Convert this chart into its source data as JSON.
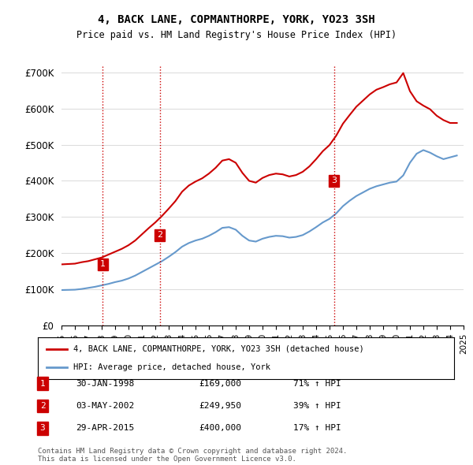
{
  "title": "4, BACK LANE, COPMANTHORPE, YORK, YO23 3SH",
  "subtitle": "Price paid vs. HM Land Registry's House Price Index (HPI)",
  "ylabel": "",
  "ylim": [
    0,
    720000
  ],
  "yticks": [
    0,
    100000,
    200000,
    300000,
    400000,
    500000,
    600000,
    700000
  ],
  "ytick_labels": [
    "£0",
    "£100K",
    "£200K",
    "£300K",
    "£400K",
    "£500K",
    "£600K",
    "£700K"
  ],
  "sale_dates": [
    1998.08,
    2002.34,
    2015.33
  ],
  "sale_prices": [
    169000,
    249950,
    400000
  ],
  "transaction_labels": [
    "1",
    "2",
    "3"
  ],
  "transaction_info": [
    [
      "1",
      "30-JAN-1998",
      "£169,000",
      "71% ↑ HPI"
    ],
    [
      "2",
      "03-MAY-2002",
      "£249,950",
      "39% ↑ HPI"
    ],
    [
      "3",
      "29-APR-2015",
      "£400,000",
      "17% ↑ HPI"
    ]
  ],
  "legend_entries": [
    "4, BACK LANE, COPMANTHORPE, YORK, YO23 3SH (detached house)",
    "HPI: Average price, detached house, York"
  ],
  "hpi_line_color": "#6699cc",
  "sale_line_color": "#cc0000",
  "vline_color": "#cc0000",
  "background_color": "#ffffff",
  "grid_color": "#dddddd",
  "footnote": "Contains HM Land Registry data © Crown copyright and database right 2024.\nThis data is licensed under the Open Government Licence v3.0.",
  "hpi_x": [
    1995,
    1995.5,
    1996,
    1996.5,
    1997,
    1997.5,
    1998,
    1998.5,
    1999,
    1999.5,
    2000,
    2000.5,
    2001,
    2001.5,
    2002,
    2002.5,
    2003,
    2003.5,
    2004,
    2004.5,
    2005,
    2005.5,
    2006,
    2006.5,
    2007,
    2007.5,
    2008,
    2008.5,
    2009,
    2009.5,
    2010,
    2010.5,
    2011,
    2011.5,
    2012,
    2012.5,
    2013,
    2013.5,
    2014,
    2014.5,
    2015,
    2015.5,
    2016,
    2016.5,
    2017,
    2017.5,
    2018,
    2018.5,
    2019,
    2019.5,
    2020,
    2020.5,
    2021,
    2021.5,
    2022,
    2022.5,
    2023,
    2023.5,
    2024,
    2024.5
  ],
  "hpi_y": [
    98000,
    98500,
    99000,
    101000,
    104000,
    107000,
    111000,
    115000,
    120000,
    124000,
    130000,
    138000,
    148000,
    158000,
    168000,
    178000,
    190000,
    203000,
    218000,
    228000,
    235000,
    240000,
    248000,
    258000,
    270000,
    272000,
    265000,
    248000,
    235000,
    232000,
    240000,
    245000,
    248000,
    247000,
    243000,
    245000,
    250000,
    260000,
    272000,
    285000,
    295000,
    310000,
    330000,
    345000,
    358000,
    368000,
    378000,
    385000,
    390000,
    395000,
    398000,
    415000,
    450000,
    475000,
    485000,
    478000,
    468000,
    460000,
    465000,
    470000
  ],
  "red_x": [
    1995,
    1995.5,
    1996,
    1996.5,
    1997,
    1997.5,
    1998,
    1998.5,
    1999,
    1999.5,
    2000,
    2000.5,
    2001,
    2001.5,
    2002,
    2002.5,
    2003,
    2003.5,
    2004,
    2004.5,
    2005,
    2005.5,
    2006,
    2006.5,
    2007,
    2007.5,
    2008,
    2008.5,
    2009,
    2009.5,
    2010,
    2010.5,
    2011,
    2011.5,
    2012,
    2012.5,
    2013,
    2013.5,
    2014,
    2014.5,
    2015,
    2015.5,
    2016,
    2016.5,
    2017,
    2017.5,
    2018,
    2018.5,
    2019,
    2019.5,
    2020,
    2020.5,
    2021,
    2021.5,
    2022,
    2022.5,
    2023,
    2023.5,
    2024,
    2024.5
  ],
  "red_y": [
    169000,
    170000,
    171000,
    175000,
    178000,
    183000,
    188000,
    196000,
    204000,
    212000,
    222000,
    235000,
    252000,
    269000,
    285000,
    303000,
    323000,
    344000,
    370000,
    387000,
    398000,
    407000,
    420000,
    436000,
    456000,
    460000,
    450000,
    422000,
    400000,
    395000,
    408000,
    416000,
    420000,
    418000,
    412000,
    416000,
    425000,
    440000,
    460000,
    482000,
    499000,
    525000,
    558000,
    582000,
    605000,
    622000,
    639000,
    652000,
    659000,
    667000,
    672000,
    698000,
    648000,
    620000,
    608000,
    598000,
    580000,
    568000,
    560000,
    560000
  ]
}
